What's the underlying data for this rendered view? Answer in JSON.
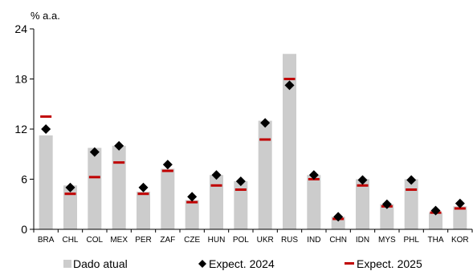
{
  "chart_data": {
    "type": "bar",
    "y_unit_label": "% a.a.",
    "ylim": [
      0,
      24
    ],
    "yticks": [
      0,
      6,
      12,
      18,
      24
    ],
    "grid": false,
    "legend_position": "bottom",
    "categories": [
      "BRA",
      "CHL",
      "COL",
      "MEX",
      "PER",
      "ZAF",
      "CZE",
      "HUN",
      "POL",
      "UKR",
      "RUS",
      "IND",
      "CHN",
      "IDN",
      "MYS",
      "PHL",
      "THA",
      "KOR"
    ],
    "series": [
      {
        "name": "Dado atual",
        "kind": "bar",
        "color": "#cccccc",
        "values": [
          11.25,
          5.25,
          9.75,
          10.0,
          4.5,
          7.25,
          3.5,
          6.5,
          5.75,
          13.0,
          21.0,
          6.5,
          1.5,
          6.0,
          3.0,
          6.0,
          2.0,
          2.75
        ]
      },
      {
        "name": "Expect. 2024",
        "kind": "diamond",
        "color": "#000000",
        "values": [
          12.0,
          5.0,
          9.25,
          10.0,
          5.0,
          7.75,
          3.9,
          6.5,
          5.75,
          12.75,
          17.25,
          6.5,
          1.5,
          5.9,
          3.0,
          5.9,
          2.25,
          3.1
        ]
      },
      {
        "name": "Expect. 2025",
        "kind": "dash",
        "color": "#c00000",
        "values": [
          13.5,
          4.25,
          6.25,
          8.0,
          4.25,
          7.0,
          3.25,
          5.25,
          4.75,
          10.75,
          18.0,
          6.0,
          1.25,
          5.25,
          2.75,
          4.75,
          2.0,
          2.5
        ]
      }
    ]
  }
}
